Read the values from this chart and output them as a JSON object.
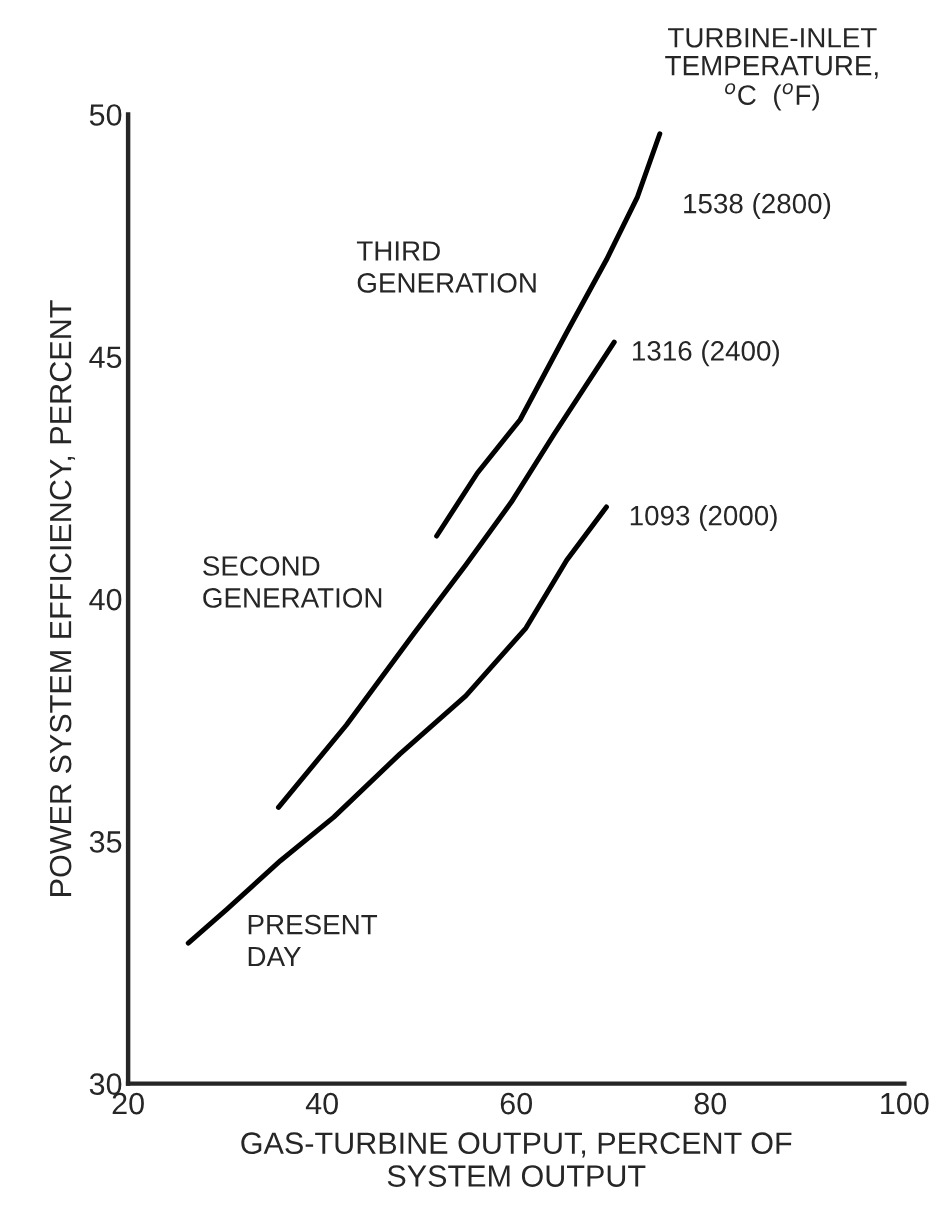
{
  "chart_data": {
    "type": "line",
    "xlabel": "GAS-TURBINE OUTPUT, PERCENT OF\nSYSTEM OUTPUT",
    "ylabel": "POWER SYSTEM EFFICIENCY, PERCENT",
    "legend_title": "TURBINE-INLET\nTEMPERATURE,\n$^{o}$C  ($^{o}$F)",
    "series": [
      {
        "name": "1538 (2800)",
        "color": "#000000",
        "x": [
          51.8,
          56.0,
          60.4,
          65.2,
          69.3,
          72.5,
          74.8
        ],
        "values": [
          41.3,
          42.6,
          43.7,
          45.5,
          47.0,
          48.3,
          49.6
        ]
      },
      {
        "name": "1316 (2400)",
        "color": "#000000",
        "x": [
          35.5,
          42.5,
          49.5,
          54.8,
          59.5,
          63.9,
          70.1
        ],
        "values": [
          35.7,
          37.4,
          39.3,
          40.7,
          42.0,
          43.4,
          45.3
        ]
      },
      {
        "name": "1093 (2000)",
        "color": "#000000",
        "x": [
          26.2,
          30.2,
          35.7,
          41.2,
          48.0,
          54.8,
          61.0,
          65.2,
          69.3
        ],
        "values": [
          32.9,
          33.6,
          34.6,
          35.5,
          36.8,
          38.0,
          39.4,
          40.8,
          41.9
        ]
      }
    ],
    "annotations": [
      "THIRD\nGENERATION",
      "SECOND\nGENERATION",
      "PRESENT\nDAY"
    ],
    "xlim": [
      20,
      100
    ],
    "xticks": [
      20,
      40,
      60,
      80,
      100
    ],
    "ylim": [
      30,
      50
    ],
    "yticks": [
      30,
      35,
      40,
      45,
      50
    ],
    "grid": false,
    "legend": false,
    "marker": "none",
    "line_style": "solid"
  }
}
